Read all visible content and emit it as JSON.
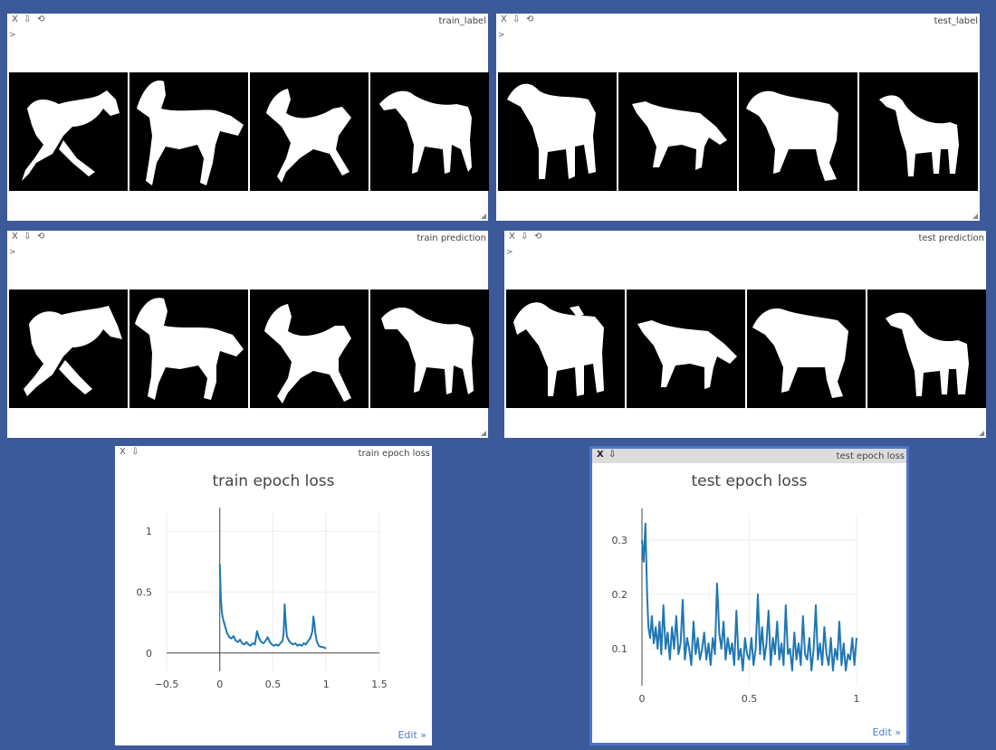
{
  "window_controls": {
    "close": "X",
    "download": "⇩",
    "reload": "⟲"
  },
  "prompt_symbol": ">",
  "panes": {
    "train_label": {
      "title": "train_label"
    },
    "test_label": {
      "title": "test_label"
    },
    "train_prediction": {
      "title": "train prediction"
    },
    "test_prediction": {
      "title": "test prediction"
    },
    "train_loss": {
      "title": "train epoch loss",
      "edit": "Edit »"
    },
    "test_loss": {
      "title": "test epoch loss",
      "edit": "Edit »"
    }
  },
  "images": {
    "description_count_per_pane": 4,
    "foreground_color": "#ffffff",
    "background_color": "#000000"
  },
  "chart_data": [
    {
      "type": "line",
      "title": "train epoch loss",
      "xlabel": "",
      "ylabel": "",
      "xlim": [
        -0.5,
        1.5
      ],
      "ylim": [
        -0.15,
        1.15
      ],
      "x_ticks": [
        "−0.5",
        "0",
        "0.5",
        "1",
        "1.5"
      ],
      "y_ticks": [
        "0",
        "0.5",
        "1"
      ],
      "x_tick_values": [
        -0.5,
        0,
        0.5,
        1,
        1.5
      ],
      "y_tick_values": [
        0,
        0.5,
        1
      ],
      "series": [
        {
          "color": "#1f77b4",
          "x": [
            0,
            0.005,
            0.01,
            0.02,
            0.03,
            0.05,
            0.07,
            0.09,
            0.11,
            0.13,
            0.15,
            0.17,
            0.19,
            0.21,
            0.23,
            0.25,
            0.27,
            0.29,
            0.31,
            0.33,
            0.35,
            0.37,
            0.39,
            0.41,
            0.43,
            0.45,
            0.47,
            0.49,
            0.51,
            0.53,
            0.55,
            0.57,
            0.59,
            0.6,
            0.61,
            0.62,
            0.63,
            0.65,
            0.67,
            0.69,
            0.71,
            0.73,
            0.75,
            0.77,
            0.79,
            0.81,
            0.83,
            0.85,
            0.87,
            0.88,
            0.89,
            0.9,
            0.91,
            0.92,
            0.93,
            0.95,
            0.97,
            0.99,
            1.0
          ],
          "y": [
            0.73,
            0.6,
            0.45,
            0.33,
            0.28,
            0.22,
            0.16,
            0.13,
            0.12,
            0.14,
            0.1,
            0.09,
            0.11,
            0.08,
            0.07,
            0.09,
            0.07,
            0.06,
            0.08,
            0.07,
            0.18,
            0.12,
            0.09,
            0.08,
            0.1,
            0.13,
            0.09,
            0.07,
            0.06,
            0.07,
            0.06,
            0.08,
            0.1,
            0.17,
            0.4,
            0.25,
            0.14,
            0.1,
            0.08,
            0.07,
            0.08,
            0.06,
            0.07,
            0.06,
            0.08,
            0.07,
            0.1,
            0.12,
            0.18,
            0.3,
            0.24,
            0.15,
            0.1,
            0.08,
            0.06,
            0.05,
            0.05,
            0.04,
            0.04
          ]
        }
      ]
    },
    {
      "type": "line",
      "title": "test epoch loss",
      "xlabel": "",
      "ylabel": "",
      "xlim": [
        0,
        1
      ],
      "ylim": [
        0.032,
        0.348
      ],
      "x_ticks": [
        "0",
        "0.5",
        "1"
      ],
      "y_ticks": [
        "0.1",
        "0.2",
        "0.3"
      ],
      "x_tick_values": [
        0,
        0.5,
        1
      ],
      "y_tick_values": [
        0.1,
        0.2,
        0.3
      ],
      "series": [
        {
          "color": "#1f77b4",
          "x": [
            0,
            0.008,
            0.016,
            0.024,
            0.03,
            0.038,
            0.046,
            0.055,
            0.064,
            0.073,
            0.082,
            0.09,
            0.1,
            0.11,
            0.12,
            0.13,
            0.14,
            0.15,
            0.16,
            0.17,
            0.18,
            0.19,
            0.2,
            0.21,
            0.22,
            0.23,
            0.24,
            0.25,
            0.26,
            0.27,
            0.28,
            0.29,
            0.3,
            0.31,
            0.32,
            0.33,
            0.34,
            0.35,
            0.355,
            0.36,
            0.37,
            0.38,
            0.39,
            0.4,
            0.41,
            0.42,
            0.43,
            0.44,
            0.45,
            0.46,
            0.47,
            0.48,
            0.49,
            0.5,
            0.51,
            0.52,
            0.53,
            0.54,
            0.55,
            0.56,
            0.57,
            0.58,
            0.59,
            0.6,
            0.61,
            0.62,
            0.63,
            0.64,
            0.65,
            0.66,
            0.67,
            0.68,
            0.69,
            0.7,
            0.71,
            0.72,
            0.73,
            0.74,
            0.75,
            0.76,
            0.77,
            0.78,
            0.79,
            0.8,
            0.81,
            0.82,
            0.83,
            0.84,
            0.85,
            0.86,
            0.87,
            0.88,
            0.89,
            0.9,
            0.91,
            0.92,
            0.93,
            0.94,
            0.95,
            0.96,
            0.97,
            0.98,
            0.99,
            1.0
          ],
          "y": [
            0.3,
            0.26,
            0.33,
            0.2,
            0.14,
            0.12,
            0.16,
            0.11,
            0.14,
            0.1,
            0.15,
            0.09,
            0.18,
            0.1,
            0.13,
            0.08,
            0.14,
            0.1,
            0.16,
            0.09,
            0.11,
            0.19,
            0.08,
            0.12,
            0.1,
            0.07,
            0.15,
            0.09,
            0.12,
            0.08,
            0.1,
            0.13,
            0.08,
            0.11,
            0.07,
            0.12,
            0.09,
            0.22,
            0.18,
            0.13,
            0.1,
            0.15,
            0.08,
            0.12,
            0.09,
            0.11,
            0.07,
            0.17,
            0.08,
            0.1,
            0.06,
            0.12,
            0.09,
            0.08,
            0.12,
            0.07,
            0.1,
            0.2,
            0.09,
            0.14,
            0.08,
            0.11,
            0.17,
            0.07,
            0.12,
            0.09,
            0.15,
            0.08,
            0.11,
            0.07,
            0.18,
            0.09,
            0.1,
            0.06,
            0.13,
            0.08,
            0.11,
            0.07,
            0.16,
            0.09,
            0.08,
            0.12,
            0.06,
            0.1,
            0.18,
            0.08,
            0.11,
            0.07,
            0.14,
            0.09,
            0.07,
            0.12,
            0.06,
            0.1,
            0.08,
            0.15,
            0.07,
            0.11,
            0.06,
            0.09,
            0.08,
            0.12,
            0.07,
            0.12
          ]
        }
      ]
    }
  ]
}
